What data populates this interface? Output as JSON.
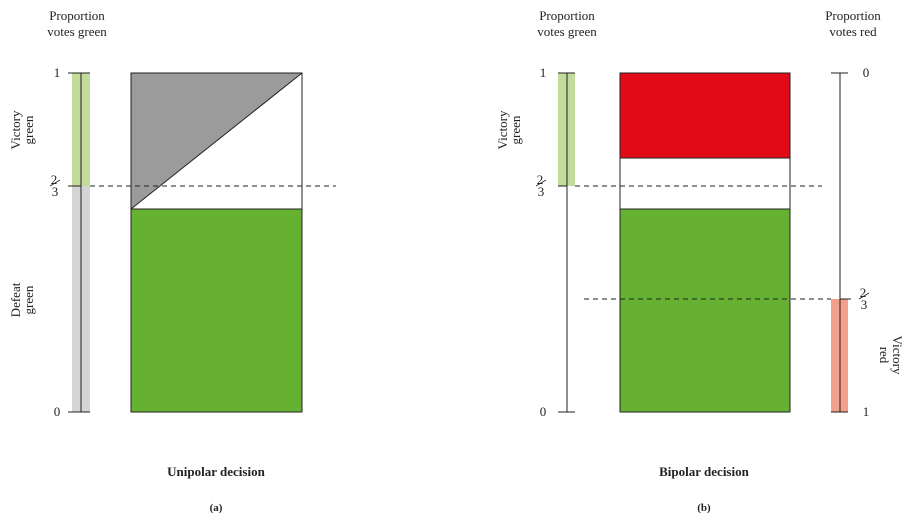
{
  "colors": {
    "green_bar": "#c3dc9c",
    "grey_bar": "#d4d4d4",
    "green_fill": "#66b132",
    "grey_fill": "#9b9b9b",
    "red_fill": "#e30a17",
    "red_bar": "#f3a08a",
    "line": "#222222"
  },
  "panel_a": {
    "axis_title_line1": "Proportion",
    "axis_title_line2": "votes green",
    "tick_top": "1",
    "tick_bottom": "0",
    "tick_fraction_num": "2",
    "tick_fraction_den": "3",
    "victory_line1": "Victory",
    "victory_line2": "green",
    "defeat_line1": "Defeat",
    "defeat_line2": "green",
    "caption": "Unipolar decision",
    "sublabel": "(a)"
  },
  "panel_b": {
    "left_axis_title_line1": "Proportion",
    "left_axis_title_line2": "votes green",
    "right_axis_title_line1": "Proportion",
    "right_axis_title_line2": "votes red",
    "left_tick_top": "1",
    "left_tick_bottom": "0",
    "left_tick_fraction_num": "2",
    "left_tick_fraction_den": "3",
    "right_tick_top": "0",
    "right_tick_bottom": "1",
    "right_tick_fraction_num": "2",
    "right_tick_fraction_den": "3",
    "victory_green_line1": "Victory",
    "victory_green_line2": "green",
    "victory_red_line1": "Victory",
    "victory_red_line2": "red",
    "caption": "Bipolar decision",
    "sublabel": "(b)"
  }
}
